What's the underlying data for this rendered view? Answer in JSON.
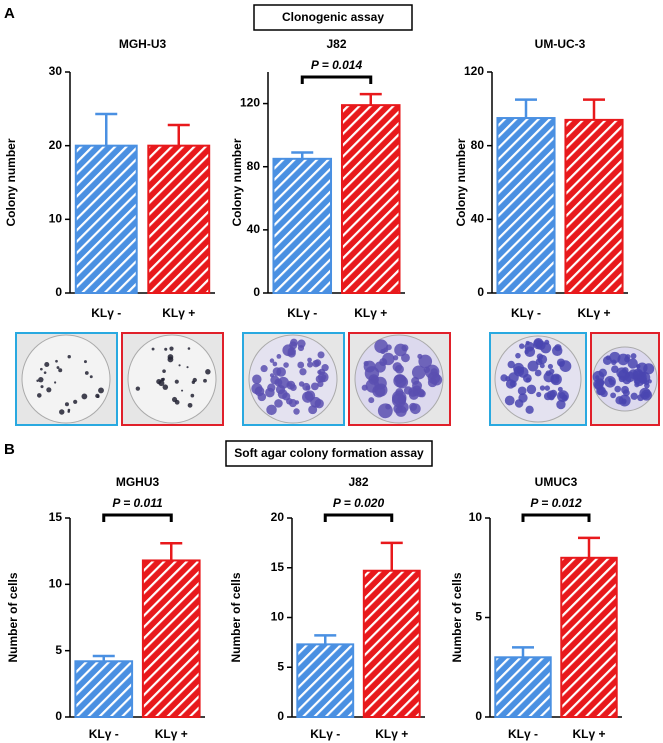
{
  "panels": [
    {
      "label": "A",
      "title": "Clonogenic assay"
    },
    {
      "label": "B",
      "title": "Soft agar colony formation assay"
    }
  ],
  "chart_data": [
    {
      "type": "bar",
      "title": "MGH-U3",
      "ylabel": "Colony number",
      "categories": [
        "KLγ -",
        "KLγ +"
      ],
      "values": [
        20,
        20
      ],
      "errors": [
        4.3,
        2.8
      ],
      "colors": [
        "#4a90e2",
        "#e8191c"
      ],
      "ylim": [
        0,
        30
      ],
      "yticks": [
        0,
        10,
        20,
        30
      ]
    },
    {
      "type": "bar",
      "title": "J82",
      "ylabel": "Colony number",
      "categories": [
        "KLγ -",
        "KLγ +"
      ],
      "values": [
        85,
        119
      ],
      "errors": [
        4,
        7
      ],
      "colors": [
        "#4a90e2",
        "#e8191c"
      ],
      "ylim": [
        0,
        140
      ],
      "yticks": [
        0,
        40,
        80,
        120
      ],
      "annotation": "P = 0.014"
    },
    {
      "type": "bar",
      "title": "UM-UC-3",
      "ylabel": "Colony number",
      "categories": [
        "KLγ -",
        "KLγ +"
      ],
      "values": [
        95,
        94
      ],
      "errors": [
        10,
        11
      ],
      "colors": [
        "#4a90e2",
        "#e8191c"
      ],
      "ylim": [
        0,
        120
      ],
      "yticks": [
        0,
        40,
        80,
        120
      ]
    },
    {
      "type": "bar",
      "title": "MGHU3",
      "ylabel": "Number of cells",
      "categories": [
        "KLγ -",
        "KLγ +"
      ],
      "values": [
        4.2,
        11.8
      ],
      "errors": [
        0.4,
        1.3
      ],
      "colors": [
        "#4a90e2",
        "#e8191c"
      ],
      "ylim": [
        0,
        15
      ],
      "yticks": [
        0,
        5,
        10,
        15
      ],
      "annotation": "P = 0.011"
    },
    {
      "type": "bar",
      "title": "J82",
      "ylabel": "Number of cells",
      "categories": [
        "KLγ -",
        "KLγ +"
      ],
      "values": [
        7.3,
        14.7
      ],
      "errors": [
        0.9,
        2.8
      ],
      "colors": [
        "#4a90e2",
        "#e8191c"
      ],
      "ylim": [
        0,
        20
      ],
      "yticks": [
        0,
        5,
        10,
        15,
        20
      ],
      "annotation": "P = 0.020"
    },
    {
      "type": "bar",
      "title": "UMUC3",
      "ylabel": "Number of cells",
      "categories": [
        "KLγ -",
        "KLγ +"
      ],
      "values": [
        3.0,
        8.0
      ],
      "errors": [
        0.5,
        1.0
      ],
      "colors": [
        "#4a90e2",
        "#e8191c"
      ],
      "ylim": [
        0,
        10
      ],
      "yticks": [
        0,
        5,
        10
      ],
      "annotation": "P = 0.012"
    }
  ]
}
